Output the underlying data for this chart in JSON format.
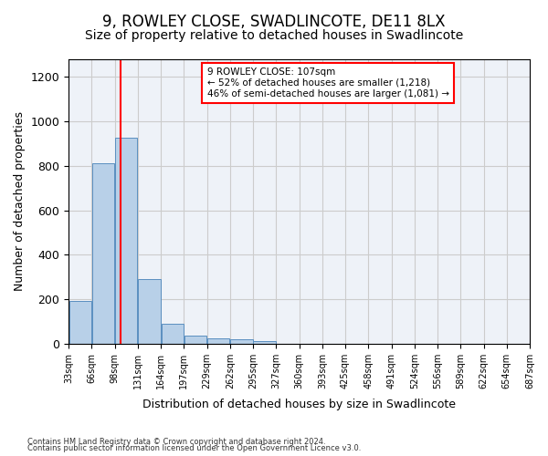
{
  "title1": "9, ROWLEY CLOSE, SWADLINCOTE, DE11 8LX",
  "title2": "Size of property relative to detached houses in Swadlincote",
  "xlabel": "Distribution of detached houses by size in Swadlincote",
  "ylabel": "Number of detached properties",
  "bar_color": "#b8d0e8",
  "bar_edgecolor": "#5a8fc0",
  "vline_x": 107,
  "vline_color": "red",
  "annotation_line1": "9 ROWLEY CLOSE: 107sqm",
  "annotation_line2": "← 52% of detached houses are smaller (1,218)",
  "annotation_line3": "46% of semi-detached houses are larger (1,081) →",
  "annotation_boxcolor": "white",
  "annotation_edgecolor": "red",
  "bin_starts": [
    33,
    66,
    99,
    132,
    165,
    198,
    231,
    264,
    297,
    330,
    363,
    396,
    429,
    462,
    495,
    528,
    561,
    594,
    627,
    660
  ],
  "bin_labels": [
    "33sqm",
    "66sqm",
    "98sqm",
    "131sqm",
    "164sqm",
    "197sqm",
    "229sqm",
    "262sqm",
    "295sqm",
    "327sqm",
    "360sqm",
    "393sqm",
    "425sqm",
    "458sqm",
    "491sqm",
    "524sqm",
    "556sqm",
    "589sqm",
    "622sqm",
    "654sqm",
    "687sqm"
  ],
  "bar_heights": [
    193,
    812,
    928,
    292,
    88,
    36,
    22,
    18,
    12,
    0,
    0,
    0,
    0,
    0,
    0,
    0,
    0,
    0,
    0,
    0
  ],
  "bin_width": 33,
  "x_min": 33,
  "x_max": 693,
  "ylim": [
    0,
    1280
  ],
  "yticks": [
    0,
    200,
    400,
    600,
    800,
    1000,
    1200
  ],
  "footer1": "Contains HM Land Registry data © Crown copyright and database right 2024.",
  "footer2": "Contains public sector information licensed under the Open Government Licence v3.0.",
  "bg_color": "#eef2f8",
  "grid_color": "#cccccc",
  "title1_fontsize": 12,
  "title2_fontsize": 10
}
